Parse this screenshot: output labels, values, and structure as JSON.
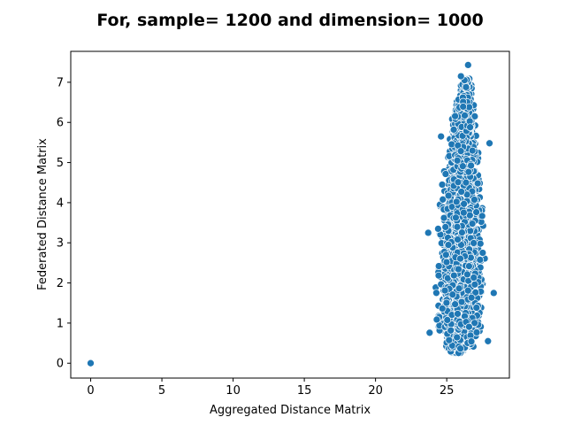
{
  "chart_data": {
    "type": "scatter",
    "title": "For, sample= 1200 and dimension= 1000",
    "xlabel": "Aggregated Distance Matrix",
    "ylabel": "Federated Distance Matrix",
    "xlim": [
      -1.4,
      29.4
    ],
    "ylim": [
      -0.37,
      7.77
    ],
    "xticks": [
      0,
      5,
      10,
      15,
      20,
      25
    ],
    "yticks": [
      0,
      1,
      2,
      3,
      4,
      5,
      6,
      7
    ],
    "grid": false,
    "marker_color": "#1f77b4",
    "marker_edge_color": "#ffffff",
    "outliers": [
      {
        "x": 0,
        "y": 0
      },
      {
        "x": 26.5,
        "y": 7.43
      },
      {
        "x": 26.0,
        "y": 7.15
      },
      {
        "x": 24.6,
        "y": 5.65
      },
      {
        "x": 28.0,
        "y": 5.48
      },
      {
        "x": 23.7,
        "y": 3.25
      },
      {
        "x": 28.3,
        "y": 1.75
      },
      {
        "x": 23.8,
        "y": 0.76
      },
      {
        "x": 27.9,
        "y": 0.55
      }
    ],
    "cluster": {
      "description_counts": "dense cloud of ~1200x1200 pairwise points",
      "profile": [
        {
          "y": 0.25,
          "x_min": 25.2,
          "x_max": 26.2
        },
        {
          "y": 0.5,
          "x_min": 24.2,
          "x_max": 27.6
        },
        {
          "y": 1.0,
          "x_min": 23.9,
          "x_max": 27.9
        },
        {
          "y": 2.0,
          "x_min": 23.8,
          "x_max": 28.0
        },
        {
          "y": 3.0,
          "x_min": 23.9,
          "x_max": 27.9
        },
        {
          "y": 4.0,
          "x_min": 24.3,
          "x_max": 27.7
        },
        {
          "y": 5.0,
          "x_min": 24.7,
          "x_max": 27.6
        },
        {
          "y": 6.0,
          "x_min": 25.2,
          "x_max": 27.2
        },
        {
          "y": 6.8,
          "x_min": 25.7,
          "x_max": 26.9
        },
        {
          "y": 7.1,
          "x_min": 26.1,
          "x_max": 26.7
        }
      ]
    }
  }
}
